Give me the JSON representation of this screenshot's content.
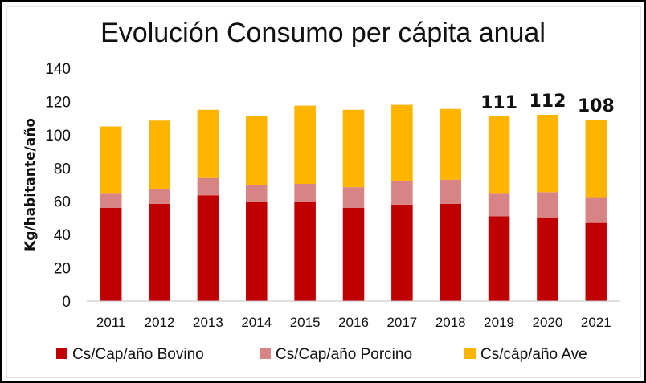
{
  "chart_data": {
    "type": "bar",
    "stacked": true,
    "title": "Evolución Consumo per cápita anual",
    "xlabel": "",
    "ylabel": "Kg/habitante/año",
    "ylim": [
      0,
      140
    ],
    "yticks": [
      0,
      20,
      40,
      60,
      80,
      100,
      120,
      140
    ],
    "categories": [
      "2011",
      "2012",
      "2013",
      "2014",
      "2015",
      "2016",
      "2017",
      "2018",
      "2019",
      "2020",
      "2021"
    ],
    "series": [
      {
        "name": "Cs/Cap/año Bovino",
        "color": "#c00000",
        "values": [
          56,
          58.5,
          63.5,
          59.5,
          59.5,
          56,
          58,
          58.5,
          51,
          50,
          47
        ]
      },
      {
        "name": "Cs/Cap/año Porcino",
        "color": "#d98484",
        "values": [
          9,
          9,
          10.5,
          10.5,
          11,
          12.5,
          14,
          14.5,
          14,
          15.5,
          15.5
        ]
      },
      {
        "name": "Cs/cáp/año Ave",
        "color": "#ffb400",
        "values": [
          40,
          41,
          41,
          41.5,
          47,
          46.5,
          46,
          42.5,
          46,
          46.5,
          46.5
        ]
      }
    ],
    "data_labels": [
      {
        "category": "2019",
        "text": "111"
      },
      {
        "category": "2020",
        "text": "112"
      },
      {
        "category": "2021",
        "text": "108"
      }
    ],
    "legend_position": "bottom",
    "grid": false
  }
}
